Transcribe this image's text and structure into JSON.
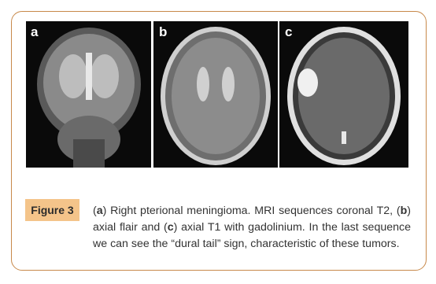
{
  "figure": {
    "panels": [
      {
        "label": "a"
      },
      {
        "label": "b"
      },
      {
        "label": "c"
      }
    ],
    "caption": {
      "label": "Figure 3",
      "runs": [
        {
          "text": "(",
          "bold": false
        },
        {
          "text": "a",
          "bold": true
        },
        {
          "text": ") Right pterional meningioma. MRI sequences coronal T2, (",
          "bold": false
        },
        {
          "text": "b",
          "bold": true
        },
        {
          "text": ") axial flair and (",
          "bold": false
        },
        {
          "text": "c",
          "bold": true
        },
        {
          "text": ") axial T1 with gadolinium. In the last sequence we can see the “dural tail” sign, characteristic of these tumors.",
          "bold": false
        }
      ]
    }
  }
}
